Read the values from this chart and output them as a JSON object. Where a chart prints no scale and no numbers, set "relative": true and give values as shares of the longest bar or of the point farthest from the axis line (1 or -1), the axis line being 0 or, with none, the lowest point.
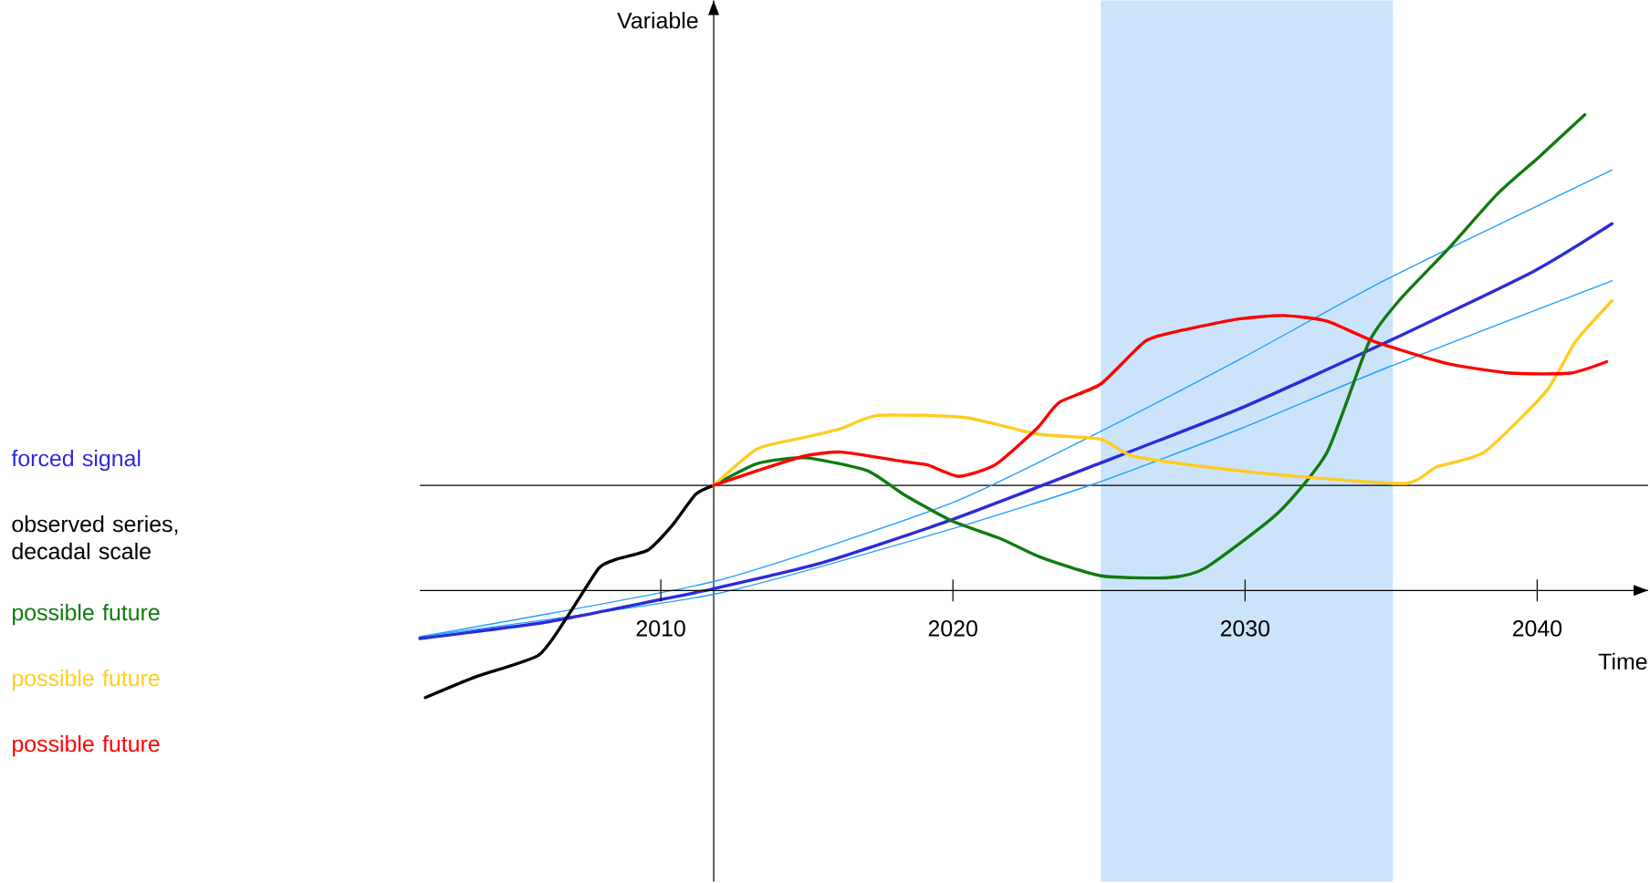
{
  "chart_data": {
    "type": "line",
    "relative": true,
    "xlabel": "Time",
    "ylabel": "Variable",
    "xlim": [
      2001.75,
      2043.8
    ],
    "xticks": [
      2010,
      2020,
      2030,
      2040
    ],
    "tick_labels": "x",
    "legend": "left",
    "series": [
      {
        "name": "forced signal",
        "color": "#2b2bd9",
        "x": [
          2001.75,
          2006.13,
          2010,
          2011.81,
          2015.5,
          2019.88,
          2024.88,
          2029.88,
          2034.88,
          2039.88,
          2042.56
        ],
        "values": [
          -0.101,
          -0.066,
          -0.019,
          0.004,
          0.058,
          0.147,
          0.264,
          0.384,
          0.523,
          0.671,
          0.771
        ]
      },
      {
        "name": "observed series, decadal scale",
        "color": "#000000",
        "x": [
          2001.94,
          2003.63,
          2005.81,
          2006.81,
          2007.88,
          2008.5,
          2009.56,
          2010.38,
          2011.19,
          2011.81
        ],
        "values": [
          -0.225,
          -0.182,
          -0.136,
          -0.054,
          0.047,
          0.066,
          0.085,
          0.136,
          0.202,
          0.221
        ]
      },
      {
        "name": "possible future",
        "color": "#107a10",
        "x": [
          2011.81,
          2013.31,
          2014.94,
          2017.06,
          2018.31,
          2019.94,
          2021.63,
          2023.0,
          2025.06,
          2027.38,
          2028.63,
          2031.13,
          2032.81,
          2034.25,
          2035.31,
          2036.94,
          2038.63,
          2040.06,
          2041.63
        ],
        "values": [
          0.221,
          0.267,
          0.279,
          0.252,
          0.202,
          0.147,
          0.109,
          0.07,
          0.031,
          0.027,
          0.047,
          0.163,
          0.291,
          0.523,
          0.612,
          0.717,
          0.833,
          0.911,
          1.0
        ]
      },
      {
        "name": "possible future",
        "color": "#ffcc22",
        "x": [
          2011.81,
          2013.31,
          2014.94,
          2016.19,
          2017.44,
          2020.38,
          2022.88,
          2025.06,
          2026.13,
          2028.63,
          2031.75,
          2035.5,
          2036.56,
          2038.19,
          2040.31,
          2041.31,
          2042.56
        ],
        "values": [
          0.221,
          0.298,
          0.322,
          0.341,
          0.368,
          0.364,
          0.329,
          0.318,
          0.283,
          0.26,
          0.24,
          0.225,
          0.26,
          0.291,
          0.419,
          0.523,
          0.609
        ]
      },
      {
        "name": "possible future",
        "color": "#ff0000",
        "x": [
          2011.81,
          2013.31,
          2014.94,
          2016.19,
          2018.31,
          2019.13,
          2020.19,
          2021.44,
          2022.88,
          2023.63,
          2025.06,
          2026.56,
          2027.56,
          2029.69,
          2031.31,
          2032.81,
          2034.44,
          2036.94,
          2039.06,
          2041.13,
          2042.38
        ],
        "values": [
          0.221,
          0.252,
          0.283,
          0.291,
          0.271,
          0.264,
          0.24,
          0.264,
          0.341,
          0.395,
          0.434,
          0.523,
          0.543,
          0.57,
          0.578,
          0.566,
          0.523,
          0.477,
          0.457,
          0.457,
          0.481
        ]
      },
      {
        "color": "#1f9fff",
        "x": [
          2001.75,
          2011.81,
          2019.88,
          2024.88,
          2029.88,
          2034.88,
          2042.56
        ],
        "values": [
          -0.097,
          0.019,
          0.182,
          0.329,
          0.488,
          0.655,
          0.884
        ]
      },
      {
        "color": "#1f9fff",
        "x": [
          2001.75,
          2011.81,
          2019.88,
          2024.88,
          2029.88,
          2034.88,
          2042.56
        ],
        "values": [
          -0.097,
          -0.008,
          0.128,
          0.225,
          0.341,
          0.469,
          0.651
        ]
      }
    ],
    "bands": [
      {
        "axis": "x",
        "from": 2025.06,
        "to": 2035.06,
        "color": "#cce4fb"
      }
    ],
    "ref_lines": [
      {
        "axis": "x",
        "value": 2011.81
      },
      {
        "axis": "y",
        "value": 0.221
      }
    ]
  }
}
